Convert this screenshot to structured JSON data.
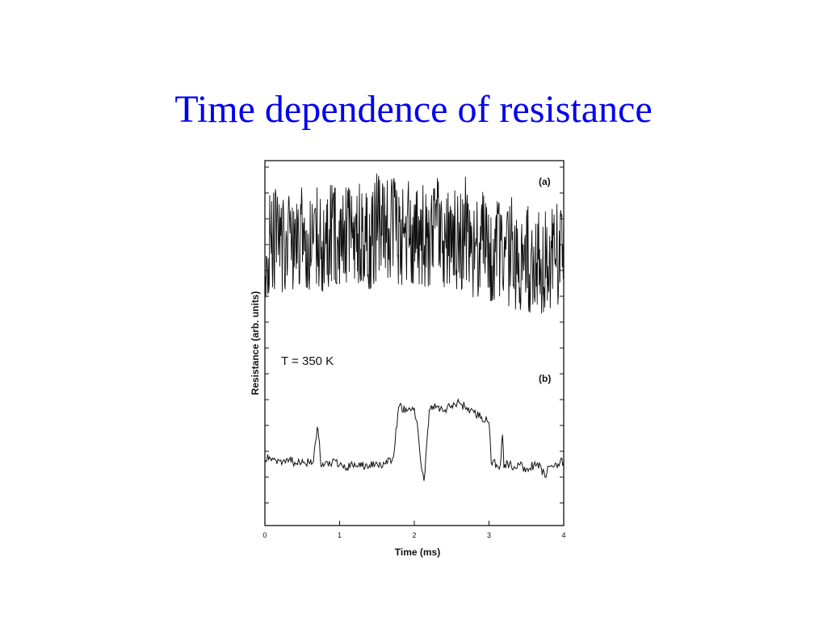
{
  "slide": {
    "title": "Time dependence of resistance",
    "title_color": "#0000ee"
  },
  "chart_data": [
    {
      "type": "line",
      "panel": "(a)",
      "xlabel": "Time (ms)",
      "ylabel": "Resistance (arb. units)",
      "xlim": [
        0,
        4
      ],
      "xticks": [
        "0",
        "1",
        "2",
        "3",
        "4"
      ],
      "x": [
        0.0,
        0.1,
        0.2,
        0.3,
        0.4,
        0.5,
        0.6,
        0.7,
        0.8,
        0.9,
        1.0,
        1.1,
        1.2,
        1.3,
        1.4,
        1.5,
        1.6,
        1.7,
        1.8,
        1.9,
        2.0,
        2.1,
        2.2,
        2.3,
        2.4,
        2.5,
        2.6,
        2.7,
        2.8,
        2.9,
        3.0,
        3.1,
        3.2,
        3.3,
        3.4,
        3.5,
        3.6,
        3.7,
        3.8,
        3.9,
        4.0
      ],
      "series": [
        {
          "values": [
            0.35,
            0.62,
            0.42,
            0.58,
            0.44,
            0.66,
            0.49,
            0.61,
            0.4,
            0.7,
            0.46,
            0.63,
            0.5,
            0.68,
            0.43,
            0.72,
            0.55,
            0.78,
            0.48,
            0.7,
            0.51,
            0.64,
            0.45,
            0.69,
            0.47,
            0.61,
            0.5,
            0.74,
            0.42,
            0.6,
            0.38,
            0.57,
            0.33,
            0.55,
            0.31,
            0.52,
            0.3,
            0.5,
            0.34,
            0.56,
            0.4
          ],
          "min": [
            0.12,
            0.2,
            0.15,
            0.2,
            0.18,
            0.22,
            0.18,
            0.22,
            0.15,
            0.25,
            0.2,
            0.22,
            0.2,
            0.25,
            0.18,
            0.25,
            0.22,
            0.28,
            0.2,
            0.25,
            0.22,
            0.22,
            0.18,
            0.22,
            0.2,
            0.2,
            0.18,
            0.2,
            0.12,
            0.15,
            0.1,
            0.12,
            0.05,
            0.08,
            0.02,
            0.05,
            0.0,
            0.02,
            0.05,
            0.08,
            0.08
          ],
          "max": [
            0.6,
            0.95,
            0.75,
            0.85,
            0.72,
            0.9,
            0.78,
            0.88,
            0.7,
            0.95,
            0.76,
            0.9,
            0.8,
            0.96,
            0.74,
            0.98,
            0.88,
            1.0,
            0.8,
            0.95,
            0.82,
            0.92,
            0.76,
            0.96,
            0.78,
            0.9,
            0.8,
            0.98,
            0.72,
            0.88,
            0.68,
            0.86,
            0.62,
            0.82,
            0.58,
            0.8,
            0.58,
            0.78,
            0.66,
            0.82,
            0.72
          ]
        }
      ]
    },
    {
      "type": "line",
      "panel": "(b)",
      "annotation": "T = 350 K",
      "xlabel": "Time (ms)",
      "ylabel": "Resistance (arb. units)",
      "xlim": [
        0,
        4
      ],
      "xticks": [
        "0",
        "1",
        "2",
        "3",
        "4"
      ],
      "x": [
        0.0,
        0.1,
        0.2,
        0.3,
        0.4,
        0.5,
        0.6,
        0.65,
        0.7,
        0.73,
        0.75,
        0.8,
        0.9,
        1.0,
        1.1,
        1.2,
        1.3,
        1.4,
        1.5,
        1.6,
        1.7,
        1.73,
        1.78,
        1.8,
        1.9,
        2.0,
        2.05,
        2.1,
        2.13,
        2.18,
        2.2,
        2.3,
        2.4,
        2.5,
        2.6,
        2.7,
        2.8,
        2.9,
        3.0,
        3.03,
        3.1,
        3.15,
        3.18,
        3.2,
        3.25,
        3.3,
        3.4,
        3.5,
        3.6,
        3.7,
        3.75,
        3.8,
        3.9,
        4.0
      ],
      "series": [
        {
          "values": [
            0.1,
            0.12,
            0.08,
            0.11,
            0.06,
            0.1,
            0.04,
            0.07,
            0.55,
            0.35,
            0.0,
            0.03,
            0.06,
            0.02,
            -0.02,
            0.05,
            0.0,
            0.02,
            0.05,
            0.04,
            0.08,
            0.2,
            0.75,
            0.85,
            0.78,
            0.82,
            0.5,
            -0.05,
            -0.2,
            0.5,
            0.8,
            0.85,
            0.78,
            0.86,
            0.9,
            0.83,
            0.76,
            0.7,
            0.62,
            0.05,
            0.03,
            0.02,
            0.45,
            -0.02,
            0.05,
            0.0,
            0.03,
            -0.03,
            0.02,
            -0.02,
            -0.15,
            0.0,
            0.04,
            0.06
          ]
        }
      ]
    }
  ]
}
